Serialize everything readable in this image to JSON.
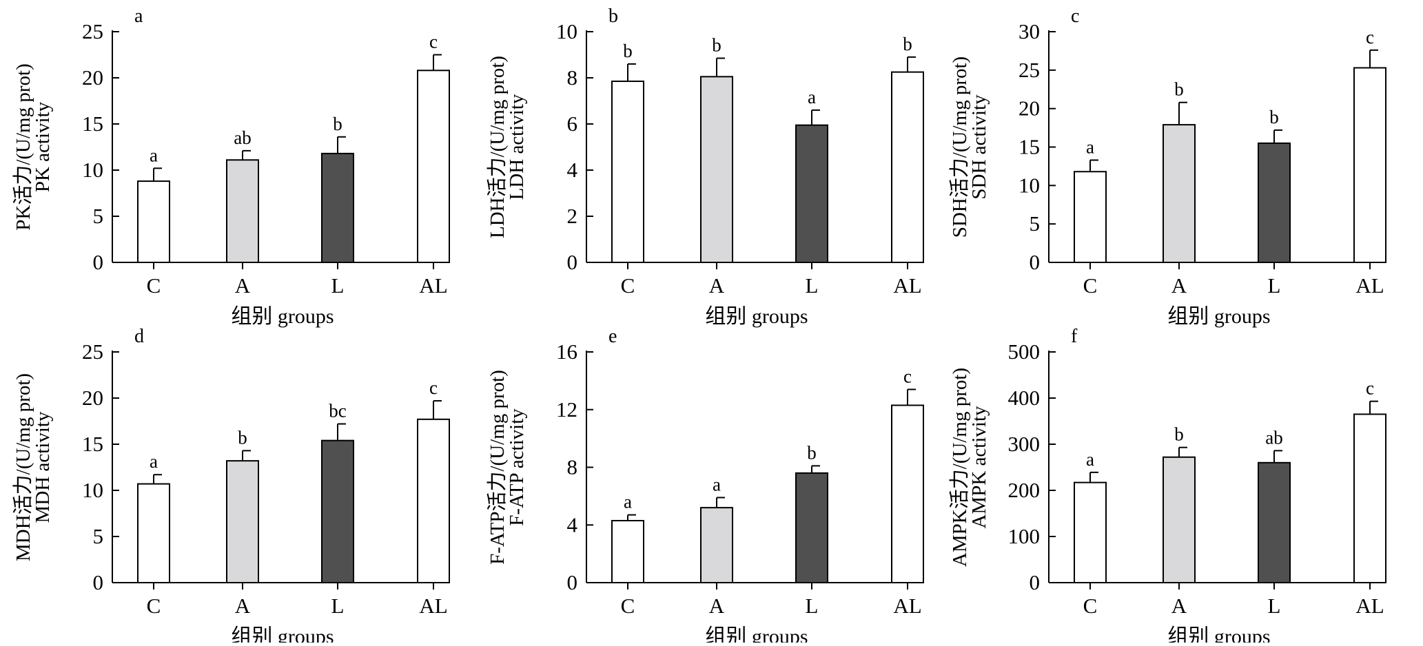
{
  "figure": {
    "bar_colors": {
      "C": "#ffffff",
      "A": "#d9d9db",
      "L": "#505050",
      "AL": "#ffffff"
    },
    "bar_stroke": "#000000"
  },
  "chart_data": [
    {
      "type": "bar",
      "panel": "a",
      "categories": [
        "C",
        "A",
        "L",
        "AL"
      ],
      "values": [
        8.8,
        11.1,
        11.8,
        20.8
      ],
      "errors": [
        1.4,
        1.0,
        1.8,
        1.7
      ],
      "significance": [
        "a",
        "ab",
        "b",
        "c"
      ],
      "ylabel_cn": "PK活力/(U/mg prot)",
      "ylabel_en": "PK activity",
      "xlabel": "组别 groups",
      "ylim": [
        0,
        25
      ],
      "yticks": [
        "0",
        "5",
        "10",
        "15",
        "20",
        "25"
      ]
    },
    {
      "type": "bar",
      "panel": "b",
      "categories": [
        "C",
        "A",
        "L",
        "AL"
      ],
      "values": [
        7.85,
        8.05,
        5.95,
        8.25
      ],
      "errors": [
        0.75,
        0.8,
        0.65,
        0.65
      ],
      "significance": [
        "b",
        "b",
        "a",
        "b"
      ],
      "ylabel_cn": "LDH活力/(U/mg prot)",
      "ylabel_en": "LDH activity",
      "xlabel": "组别 groups",
      "ylim": [
        0,
        10
      ],
      "yticks": [
        "0",
        "2",
        "4",
        "6",
        "8",
        "10"
      ]
    },
    {
      "type": "bar",
      "panel": "c",
      "categories": [
        "C",
        "A",
        "L",
        "AL"
      ],
      "values": [
        11.8,
        17.9,
        15.5,
        25.3
      ],
      "errors": [
        1.5,
        2.9,
        1.7,
        2.3
      ],
      "significance": [
        "a",
        "b",
        "b",
        "c"
      ],
      "ylabel_cn": "SDH活力/(U/mg prot)",
      "ylabel_en": "SDH activity",
      "xlabel": "组别 groups",
      "ylim": [
        0,
        30
      ],
      "yticks": [
        "0",
        "5",
        "10",
        "15",
        "20",
        "25",
        "30"
      ]
    },
    {
      "type": "bar",
      "panel": "d",
      "categories": [
        "C",
        "A",
        "L",
        "AL"
      ],
      "values": [
        10.7,
        13.2,
        15.4,
        17.7
      ],
      "errors": [
        1.0,
        1.1,
        1.8,
        2.0
      ],
      "significance": [
        "a",
        "b",
        "bc",
        "c"
      ],
      "ylabel_cn": "MDH活力/(U/mg prot)",
      "ylabel_en": "MDH activity",
      "xlabel": "组别 groups",
      "ylim": [
        0,
        25
      ],
      "yticks": [
        "0",
        "5",
        "10",
        "15",
        "20",
        "25"
      ]
    },
    {
      "type": "bar",
      "panel": "e",
      "categories": [
        "C",
        "A",
        "L",
        "AL"
      ],
      "values": [
        4.3,
        5.2,
        7.6,
        12.3
      ],
      "errors": [
        0.4,
        0.7,
        0.5,
        1.1
      ],
      "significance": [
        "a",
        "a",
        "b",
        "c"
      ],
      "ylabel_cn": "F-ATP活力/(U/mg prot)",
      "ylabel_en": "F-ATP activity",
      "xlabel": "组别 groups",
      "ylim": [
        0,
        16
      ],
      "yticks": [
        "0",
        "4",
        "8",
        "12",
        "16"
      ]
    },
    {
      "type": "bar",
      "panel": "f",
      "categories": [
        "C",
        "A",
        "L",
        "AL"
      ],
      "values": [
        217,
        272,
        260,
        365
      ],
      "errors": [
        22,
        21,
        26,
        28
      ],
      "significance": [
        "a",
        "b",
        "ab",
        "c"
      ],
      "ylabel_cn": "AMPK活力/(U/mg prot)",
      "ylabel_en": "AMPK activity",
      "xlabel": "组别 groups",
      "ylim": [
        0,
        500
      ],
      "yticks": [
        "0",
        "100",
        "200",
        "300",
        "400",
        "500"
      ]
    }
  ]
}
